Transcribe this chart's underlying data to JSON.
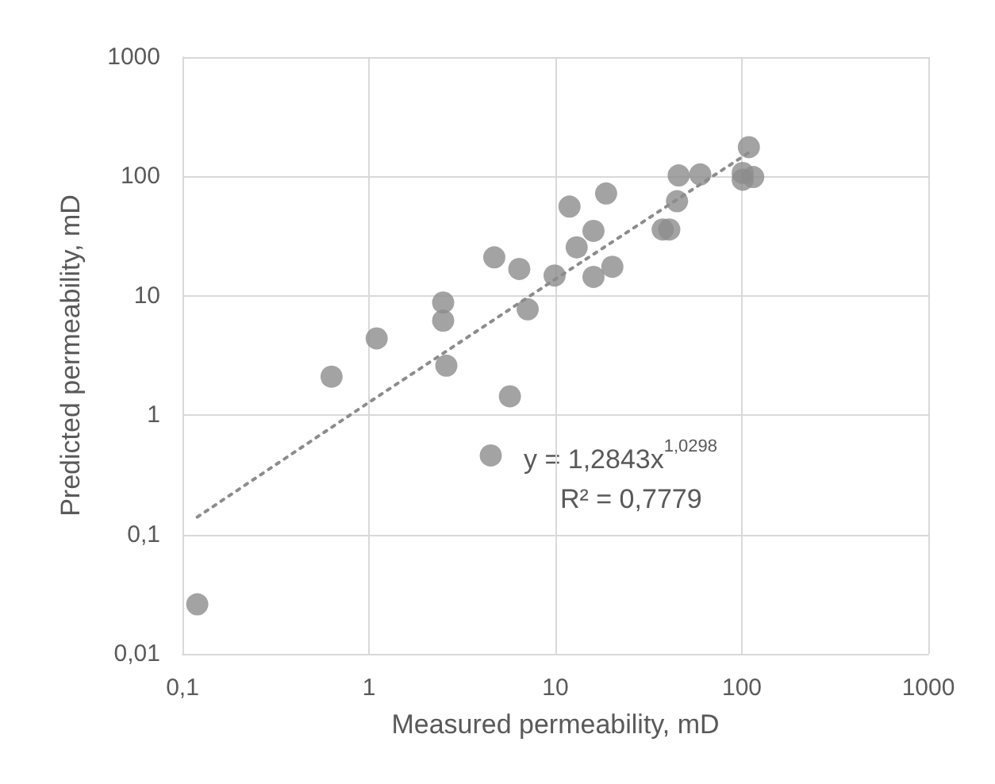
{
  "chart_data": {
    "type": "scatter",
    "xlabel": "Measured permeability, mD",
    "ylabel": "Predicted permeability, mD",
    "xlim": [
      0.1,
      1000
    ],
    "ylim": [
      0.01,
      1000
    ],
    "xticks": [
      {
        "value": 0.1,
        "label": "0,1"
      },
      1,
      10,
      100,
      1000
    ],
    "yticks": [
      {
        "value": 0.01,
        "label": "0,01"
      },
      {
        "value": 0.1,
        "label": "0,1"
      },
      1,
      10,
      100,
      1000
    ],
    "log": "xy",
    "grid": true,
    "annotations": [
      "y = 1,2843x$^{1,0298}$",
      "R² = 0,7779"
    ],
    "series": [
      {
        "color": "#8c8c8c",
        "marker": "circle",
        "x": [
          0.12,
          0.63,
          1.1,
          2.5,
          2.5,
          2.6,
          4.5,
          4.7,
          5.7,
          6.4,
          7.1,
          9.9,
          11.9,
          13,
          16,
          16,
          18.7,
          20.2,
          37.6,
          40.8,
          44.9,
          45.8,
          59.8,
          101,
          101,
          115,
          109
        ],
        "values": [
          0.026,
          2.1,
          4.4,
          8.8,
          6.2,
          2.6,
          0.46,
          21,
          1.44,
          16.8,
          7.7,
          14.8,
          56,
          25.5,
          35,
          14.4,
          72,
          17.5,
          36,
          36,
          62,
          102,
          104,
          94,
          107,
          99,
          176
        ]
      },
      {
        "type": "line",
        "color": "#8c8c8c",
        "marker": "none",
        "line_style": "dotted",
        "x": [
          0.12,
          1,
          10,
          110
        ],
        "values": [
          0.14,
          1.28,
          13.8,
          160
        ]
      }
    ]
  }
}
